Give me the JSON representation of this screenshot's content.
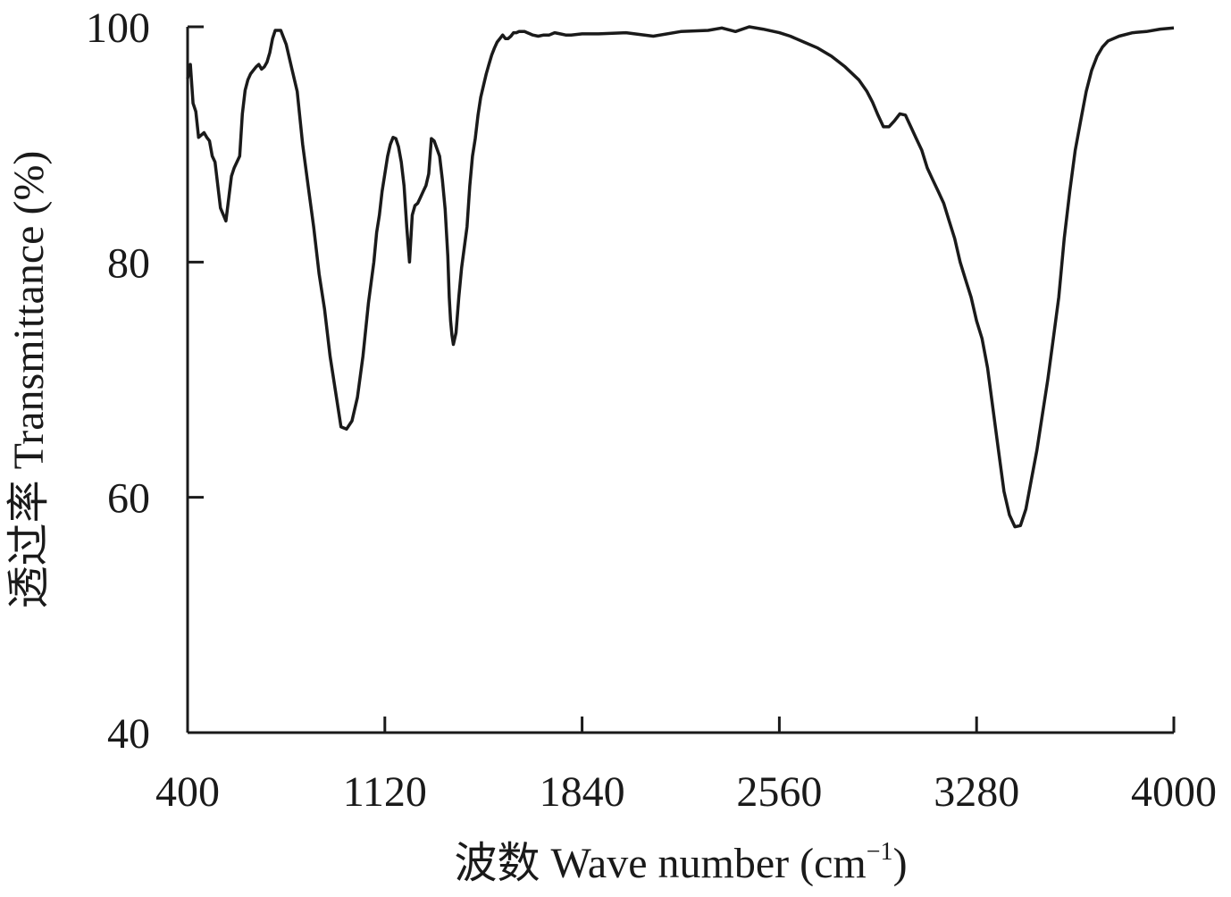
{
  "chart_data": {
    "type": "line",
    "title": "",
    "xlabel": "波数 Wave number (cm",
    "xlabel_sup": "−1",
    "xlabel_close": ")",
    "ylabel": "透过率 Transmittance (%)",
    "xlim": [
      400,
      4000
    ],
    "ylim": [
      40,
      100
    ],
    "xticks": [
      400,
      1120,
      1840,
      2560,
      3280,
      4000
    ],
    "yticks": [
      40,
      60,
      80,
      100
    ],
    "grid": false,
    "line_color": "#1a1a1a",
    "series": [
      {
        "x": [
          400,
          410,
          420,
          430,
          440,
          460,
          470,
          480,
          490,
          500,
          520,
          540,
          560,
          570,
          580,
          590,
          600,
          610,
          620,
          630,
          640,
          650,
          660,
          670,
          680,
          690,
          700,
          710,
          720,
          740,
          760,
          780,
          800,
          820,
          840,
          860,
          880,
          900,
          920,
          940,
          960,
          980,
          1000,
          1020,
          1040,
          1060,
          1080,
          1090,
          1100,
          1110,
          1120,
          1130,
          1140,
          1150,
          1160,
          1170,
          1180,
          1190,
          1200,
          1210,
          1220,
          1230,
          1240,
          1250,
          1260,
          1270,
          1280,
          1290,
          1300,
          1320,
          1330,
          1340,
          1350,
          1355,
          1360,
          1365,
          1370,
          1380,
          1390,
          1400,
          1420,
          1430,
          1440,
          1450,
          1460,
          1470,
          1480,
          1490,
          1500,
          1510,
          1520,
          1530,
          1540,
          1550,
          1560,
          1570,
          1580,
          1590,
          1600,
          1610,
          1620,
          1630,
          1640,
          1650,
          1660,
          1680,
          1700,
          1720,
          1740,
          1760,
          1780,
          1800,
          1840,
          1900,
          2000,
          2100,
          2200,
          2300,
          2350,
          2400,
          2450,
          2500,
          2560,
          2600,
          2650,
          2700,
          2750,
          2800,
          2850,
          2880,
          2900,
          2920,
          2940,
          2960,
          2980,
          3000,
          3020,
          3040,
          3060,
          3080,
          3100,
          3120,
          3140,
          3160,
          3180,
          3200,
          3220,
          3240,
          3260,
          3280,
          3300,
          3320,
          3340,
          3360,
          3380,
          3400,
          3420,
          3440,
          3460,
          3480,
          3500,
          3520,
          3540,
          3560,
          3580,
          3600,
          3620,
          3640,
          3660,
          3680,
          3700,
          3720,
          3740,
          3760,
          3800,
          3850,
          3900,
          3950,
          4000
        ],
        "y": [
          95.6,
          96.8,
          93.5,
          92.8,
          90.6,
          91.0,
          90.6,
          90.3,
          89.0,
          88.5,
          84.6,
          83.5,
          87.3,
          88.0,
          88.5,
          89.0,
          92.6,
          94.6,
          95.5,
          96.0,
          96.3,
          96.6,
          96.8,
          96.4,
          96.6,
          97.0,
          97.8,
          99.0,
          99.7,
          99.7,
          98.5,
          96.5,
          94.5,
          90.0,
          86.5,
          83.0,
          79.0,
          76.0,
          72.0,
          69.0,
          66.0,
          65.8,
          66.5,
          68.5,
          72.0,
          76.5,
          80.0,
          82.5,
          84.0,
          86.0,
          87.5,
          89.0,
          90.0,
          90.6,
          90.5,
          89.8,
          88.5,
          86.5,
          83.0,
          80.0,
          84.0,
          84.8,
          85.0,
          85.5,
          86.0,
          86.5,
          87.5,
          90.5,
          90.3,
          89.0,
          87.0,
          84.5,
          80.5,
          77.0,
          75.0,
          73.8,
          73.0,
          74.0,
          77.0,
          79.5,
          83.0,
          86.5,
          89.0,
          90.5,
          92.5,
          94.0,
          95.0,
          96.0,
          96.8,
          97.6,
          98.2,
          98.7,
          99.0,
          99.3,
          99.0,
          99.0,
          99.2,
          99.5,
          99.5,
          99.6,
          99.6,
          99.6,
          99.5,
          99.4,
          99.3,
          99.2,
          99.3,
          99.3,
          99.5,
          99.4,
          99.3,
          99.3,
          99.4,
          99.4,
          99.5,
          99.2,
          99.6,
          99.7,
          99.9,
          99.6,
          100.0,
          99.8,
          99.5,
          99.2,
          98.7,
          98.2,
          97.5,
          96.6,
          95.5,
          94.5,
          93.6,
          92.5,
          91.5,
          91.5,
          92.0,
          92.6,
          92.5,
          91.5,
          90.5,
          89.5,
          88.0,
          87.0,
          86.0,
          85.0,
          83.5,
          82.0,
          80.0,
          78.5,
          77.0,
          75.0,
          73.5,
          71.0,
          67.5,
          64.0,
          60.5,
          58.5,
          57.5,
          57.6,
          59.0,
          61.5,
          64.0,
          67.0,
          70.0,
          73.5,
          77.0,
          82.0,
          86.0,
          89.5,
          92.0,
          94.5,
          96.3,
          97.5,
          98.3,
          98.8,
          99.2,
          99.5,
          99.6,
          99.8,
          99.9
        ]
      }
    ]
  }
}
